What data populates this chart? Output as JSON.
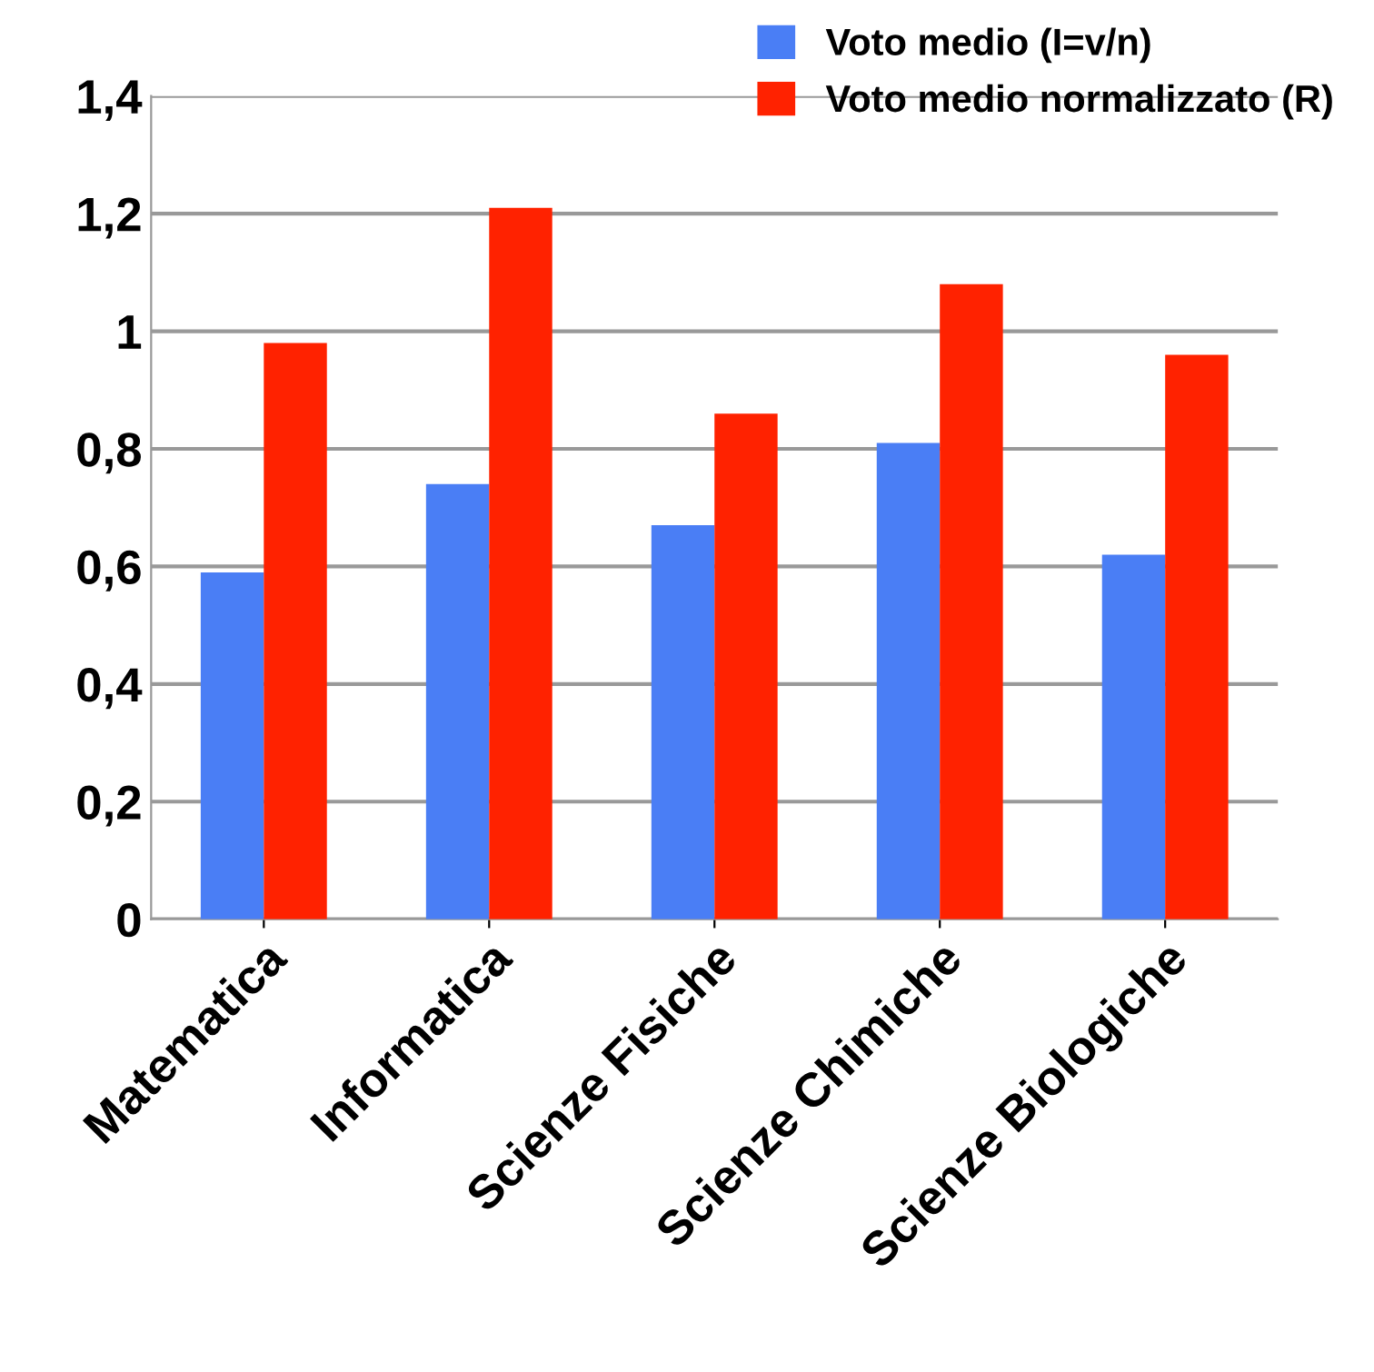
{
  "chart_data": {
    "type": "bar",
    "categories": [
      "Matematica",
      "Informatica",
      "Scienze Fisiche",
      "Scienze Chimiche",
      "Scienze Biologiche"
    ],
    "series": [
      {
        "name": "Voto medio (I=v/n)",
        "color": "#4a7ef5",
        "values": [
          0.59,
          0.74,
          0.67,
          0.81,
          0.62
        ]
      },
      {
        "name": "Voto medio normalizzato (R)",
        "color": "#ff2200",
        "values": [
          0.98,
          1.21,
          0.86,
          1.08,
          0.96
        ]
      }
    ],
    "ylim": [
      0,
      1.4
    ],
    "yticks": [
      0,
      {
        "value": 0.2,
        "label": "0,2"
      },
      {
        "value": 0.4,
        "label": "0,4"
      },
      {
        "value": 0.6,
        "label": "0,6"
      },
      {
        "value": 0.8,
        "label": "0,8"
      },
      1,
      {
        "value": 1.2,
        "label": "1,2"
      },
      {
        "value": 1.4,
        "label": "1,4"
      }
    ],
    "grid": "y",
    "legend": "top right"
  }
}
